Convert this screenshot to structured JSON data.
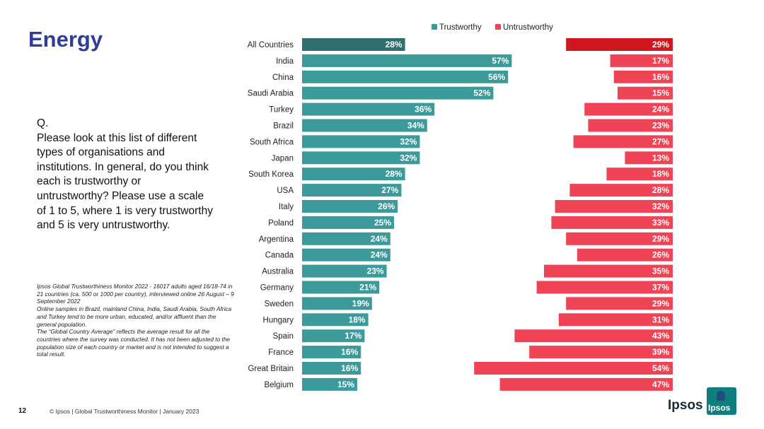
{
  "page": {
    "title": "Energy",
    "question_label": "Q.",
    "question": "Please look at this list of different types of organisations and institutions. In general, do you think each is trustworthy or untrustworthy? Please use a scale of 1 to 5, where 1 is very trustworthy and 5 is very untrustworthy.",
    "source_lines": [
      "Ipsos Global Trustworthiness Monitor 2022 - 16017 adults aged 16/18-74 in 21 countries (ca. 500 or 1000 per country), interviewed online 26 August – 9 September 2022",
      "Online samples in Brazil, mainland China, India, Saudi Arabia, South Africa and Turkey tend to be more urban, educated, and/or affluent than the general population.",
      "The “Global Country Average” reflects the average result for all the countries where the survey was conducted. It has not been adjusted to the population size of each country or market and is not intended to suggest a total result."
    ],
    "page_number": "12",
    "footer": "© Ipsos | Global Trustworthiness Monitor | January 2023",
    "logo_text": "Ipsos",
    "logo_badge": "Ipsos"
  },
  "chart_data": {
    "type": "bar",
    "orientation": "horizontal",
    "title": "",
    "categories": [
      "All Countries",
      "India",
      "China",
      "Saudi Arabia",
      "Turkey",
      "Brazil",
      "South Africa",
      "Japan",
      "South Korea",
      "USA",
      "Italy",
      "Poland",
      "Argentina",
      "Canada",
      "Australia",
      "Germany",
      "Sweden",
      "Hungary",
      "Spain",
      "France",
      "Great Britain",
      "Belgium"
    ],
    "series": [
      {
        "name": "Trustworthy",
        "values": [
          28,
          57,
          56,
          52,
          36,
          34,
          32,
          32,
          28,
          27,
          26,
          25,
          24,
          24,
          23,
          21,
          19,
          18,
          17,
          16,
          16,
          15
        ]
      },
      {
        "name": "Untrustworthy",
        "values": [
          29,
          17,
          16,
          15,
          24,
          23,
          27,
          13,
          18,
          28,
          32,
          33,
          29,
          26,
          35,
          37,
          29,
          31,
          43,
          39,
          54,
          47
        ]
      }
    ],
    "value_suffix": "%",
    "legend_position": "top",
    "colors": {
      "trustworthy": "#3d9a9a",
      "trustworthy_highlight": "#2f6f6f",
      "untrustworthy": "#ee4455",
      "untrustworthy_highlight": "#d0161e"
    }
  }
}
